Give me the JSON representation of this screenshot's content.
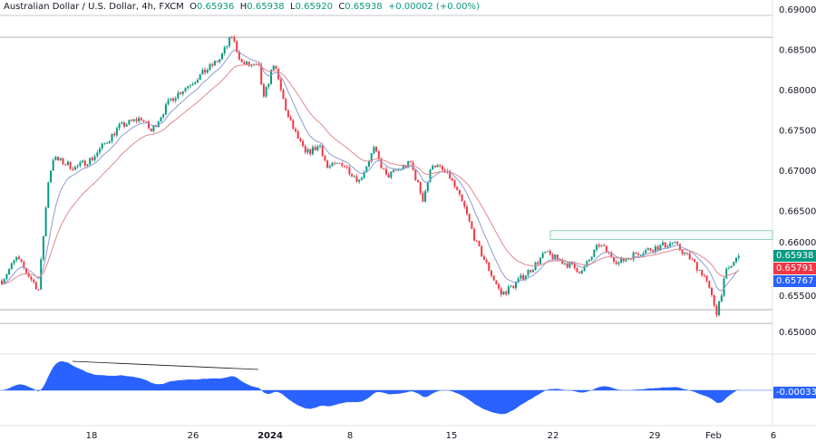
{
  "header": {
    "symbol": "Australian Dollar / U.S. Dollar, 4h, FXCM",
    "o_label": "O",
    "o": "0.65936",
    "h_label": "H",
    "h": "0.65938",
    "l_label": "L",
    "l": "0.65920",
    "c_label": "C",
    "c": "0.65938",
    "change": "+0.00002 (+0.00%)"
  },
  "badges": {
    "last": "0.65938",
    "ma_slow": "0.65791",
    "ma_fast": "0.65767",
    "osc": "-0.00033"
  },
  "colors": {
    "up": "#089981",
    "down": "#f23645",
    "ma_fast": "#8c9ccf",
    "ma_slow": "#e0898f",
    "osc": "#2962ff"
  },
  "chart_data": {
    "type": "candlestick",
    "title": "Australian Dollar / U.S. Dollar, 4h, FXCM",
    "yticks": [
      "0.69000",
      "0.68500",
      "0.68000",
      "0.67500",
      "0.67000",
      "0.66500",
      "0.66000",
      "0.65500",
      "0.65000"
    ],
    "ylim": [
      0.65,
      0.69
    ],
    "xticks": [
      "18",
      "26",
      "2024",
      "8",
      "15",
      "22",
      "29",
      "Feb",
      "6"
    ],
    "path": [
      [
        0,
        0.6563
      ],
      [
        6,
        0.6591
      ],
      [
        15,
        0.6552
      ],
      [
        19,
        0.6687
      ],
      [
        21,
        0.6715
      ],
      [
        30,
        0.6703
      ],
      [
        37,
        0.6715
      ],
      [
        48,
        0.6754
      ],
      [
        57,
        0.6765
      ],
      [
        61,
        0.6748
      ],
      [
        69,
        0.6788
      ],
      [
        78,
        0.681
      ],
      [
        89,
        0.6838
      ],
      [
        94,
        0.6866
      ],
      [
        98,
        0.6833
      ],
      [
        105,
        0.6827
      ],
      [
        107,
        0.6788
      ],
      [
        111,
        0.6833
      ],
      [
        117,
        0.6765
      ],
      [
        124,
        0.672
      ],
      [
        130,
        0.6731
      ],
      [
        133,
        0.6703
      ],
      [
        139,
        0.6709
      ],
      [
        146,
        0.6687
      ],
      [
        152,
        0.6726
      ],
      [
        157,
        0.6692
      ],
      [
        167,
        0.6709
      ],
      [
        172,
        0.6664
      ],
      [
        176,
        0.6709
      ],
      [
        183,
        0.6692
      ],
      [
        189,
        0.6653
      ],
      [
        194,
        0.6608
      ],
      [
        204,
        0.6546
      ],
      [
        209,
        0.6557
      ],
      [
        217,
        0.658
      ],
      [
        222,
        0.6597
      ],
      [
        230,
        0.6585
      ],
      [
        237,
        0.6574
      ],
      [
        244,
        0.6608
      ],
      [
        252,
        0.6585
      ],
      [
        259,
        0.6597
      ],
      [
        274,
        0.661
      ],
      [
        281,
        0.6591
      ],
      [
        287,
        0.6569
      ],
      [
        292,
        0.6524
      ],
      [
        296,
        0.6574
      ],
      [
        301,
        0.6593
      ]
    ],
    "levels": [
      0.6865,
      0.6527,
      0.651
    ],
    "range_zone": [
      0.6614,
      0.6625
    ]
  }
}
